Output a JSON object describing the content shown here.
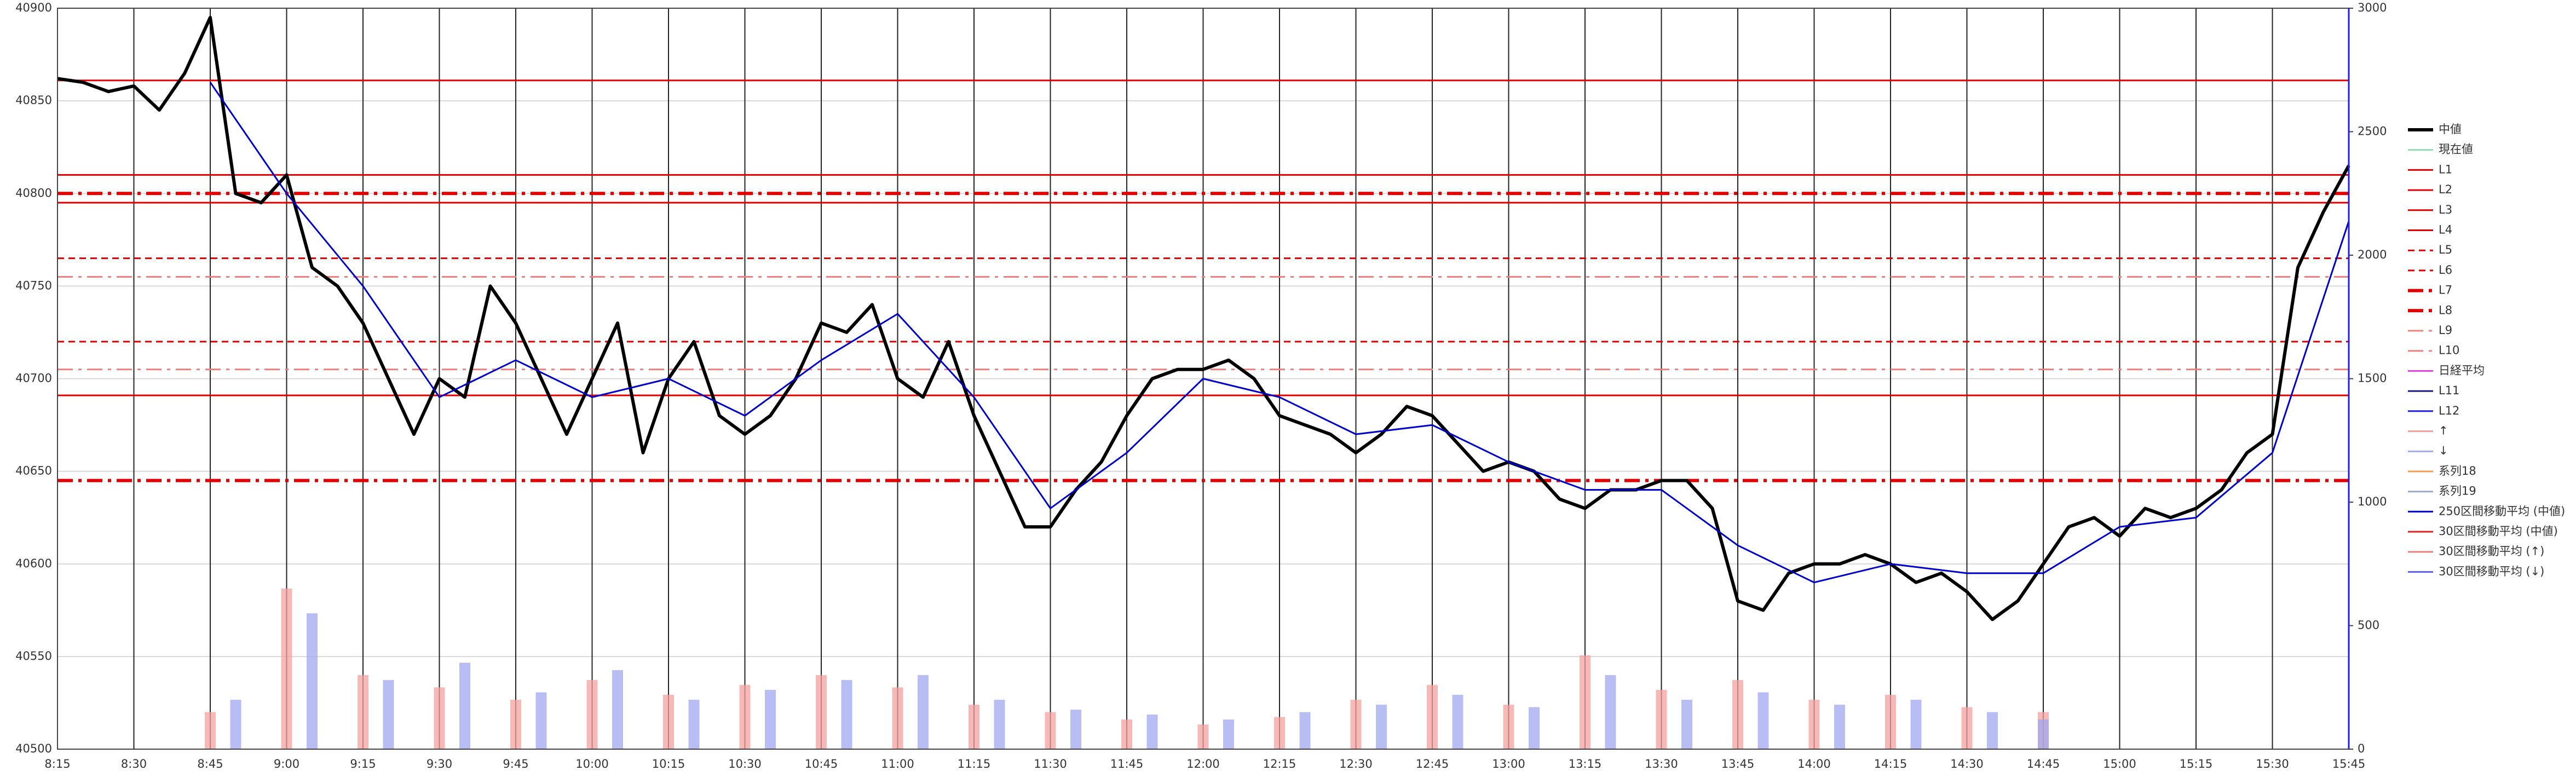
{
  "chart_data": {
    "type": "line",
    "xlim": [
      "8:15",
      "15:45"
    ],
    "xticks": [
      "8:15",
      "8:30",
      "8:45",
      "9:00",
      "9:15",
      "9:30",
      "9:45",
      "10:00",
      "10:15",
      "10:30",
      "10:45",
      "11:00",
      "11:15",
      "11:30",
      "11:45",
      "12:00",
      "12:15",
      "12:30",
      "12:45",
      "13:00",
      "13:15",
      "13:30",
      "13:45",
      "14:00",
      "14:15",
      "14:30",
      "14:45",
      "15:00",
      "15:15",
      "15:30",
      "15:45"
    ],
    "ylim": [
      40500,
      40900
    ],
    "yticks": [
      40500,
      40550,
      40600,
      40650,
      40700,
      40750,
      40800,
      40850,
      40900
    ],
    "y2lim": [
      0,
      3000
    ],
    "y2ticks": [
      0,
      500,
      1000,
      1500,
      2000,
      2500,
      3000
    ],
    "grid": true,
    "legend": "right",
    "series": [
      {
        "name": "中値",
        "color": "#000000",
        "line": "solid-bold",
        "x": [
          "8:15",
          "8:20",
          "8:25",
          "8:30",
          "8:35",
          "8:40",
          "8:45",
          "8:50",
          "8:55",
          "9:00",
          "9:05",
          "9:10",
          "9:15",
          "9:20",
          "9:25",
          "9:30",
          "9:35",
          "9:40",
          "9:45",
          "9:50",
          "9:55",
          "10:00",
          "10:05",
          "10:10",
          "10:15",
          "10:20",
          "10:25",
          "10:30",
          "10:35",
          "10:40",
          "10:45",
          "10:50",
          "10:55",
          "11:00",
          "11:05",
          "11:10",
          "11:15",
          "11:20",
          "11:25",
          "11:30",
          "11:35",
          "11:40",
          "11:45",
          "11:50",
          "11:55",
          "12:00",
          "12:05",
          "12:10",
          "12:15",
          "12:20",
          "12:25",
          "12:30",
          "12:35",
          "12:40",
          "12:45",
          "12:50",
          "12:55",
          "13:00",
          "13:05",
          "13:10",
          "13:15",
          "13:20",
          "13:25",
          "13:30",
          "13:35",
          "13:40",
          "13:45",
          "13:50",
          "13:55",
          "14:00",
          "14:05",
          "14:10",
          "14:15",
          "14:20",
          "14:25",
          "14:30",
          "14:35",
          "14:40",
          "14:45",
          "14:50",
          "14:55",
          "15:00",
          "15:05",
          "15:10",
          "15:15",
          "15:20",
          "15:25",
          "15:30",
          "15:35",
          "15:40",
          "15:45"
        ],
        "values": [
          40862,
          40860,
          40855,
          40858,
          40845,
          40865,
          40895,
          40800,
          40795,
          40810,
          40760,
          40750,
          40730,
          40700,
          40670,
          40700,
          40690,
          40750,
          40730,
          40700,
          40670,
          40700,
          40730,
          40660,
          40700,
          40720,
          40680,
          40670,
          40680,
          40700,
          40730,
          40725,
          40740,
          40700,
          40690,
          40720,
          40680,
          40650,
          40620,
          40620,
          40640,
          40655,
          40680,
          40700,
          40705,
          40705,
          40710,
          40700,
          40680,
          40675,
          40670,
          40660,
          40670,
          40685,
          40680,
          40665,
          40650,
          40655,
          40650,
          40635,
          40630,
          40640,
          40640,
          40645,
          40645,
          40630,
          40580,
          40575,
          40595,
          40600,
          40600,
          40605,
          40600,
          40590,
          40595,
          40585,
          40570,
          40580,
          40600,
          40620,
          40625,
          40615,
          40630,
          40625,
          40630,
          40640,
          40660,
          40670,
          40760,
          40790,
          40815
        ]
      },
      {
        "name": "現在値",
        "color": "#8fd9b6",
        "line": "solid"
      },
      {
        "name": "L1",
        "color": "#e00000",
        "line": "solid",
        "level": 40861
      },
      {
        "name": "L2",
        "color": "#e00000",
        "line": "solid",
        "level": 40810
      },
      {
        "name": "L3",
        "color": "#e00000",
        "line": "solid",
        "level": 40795
      },
      {
        "name": "L4",
        "color": "#e00000",
        "line": "solid",
        "level": 40691
      },
      {
        "name": "L5",
        "color": "#e00000",
        "line": "dashed",
        "level": 40765
      },
      {
        "name": "L6",
        "color": "#e00000",
        "line": "dashed",
        "level": 40720
      },
      {
        "name": "L7",
        "color": "#e00000",
        "line": "dashdot-bold",
        "level": 40800
      },
      {
        "name": "L8",
        "color": "#e00000",
        "line": "dashdot-bold",
        "level": 40645
      },
      {
        "name": "L9",
        "color": "#f08080",
        "line": "dashdot",
        "level": 40755
      },
      {
        "name": "L10",
        "color": "#f08080",
        "line": "dashdot",
        "level": 40705
      },
      {
        "name": "日経平均",
        "color": "#e040e0",
        "line": "solid"
      },
      {
        "name": "L11",
        "color": "#1a1a80",
        "line": "solid"
      },
      {
        "name": "L12",
        "color": "#2020e0",
        "line": "solid"
      },
      {
        "name": "↑",
        "color": "#f4a0a0",
        "line": "solid",
        "axis": "y2",
        "x": [
          "8:45",
          "9:00",
          "9:15",
          "9:30",
          "9:45",
          "10:00",
          "10:15",
          "10:30",
          "10:45",
          "11:00",
          "11:15",
          "11:30",
          "11:45",
          "12:00",
          "12:15",
          "12:30",
          "12:45",
          "13:00",
          "13:15",
          "13:30",
          "13:45",
          "14:00",
          "14:15",
          "14:30",
          "14:45"
        ],
        "values": [
          150,
          650,
          300,
          250,
          200,
          280,
          220,
          260,
          300,
          250,
          180,
          150,
          120,
          100,
          130,
          200,
          260,
          180,
          380,
          240,
          280,
          200,
          220,
          170,
          150
        ]
      },
      {
        "name": "↓",
        "color": "#a0a8f0",
        "line": "solid",
        "axis": "y2",
        "x": [
          "8:50",
          "9:05",
          "9:20",
          "9:35",
          "9:50",
          "10:05",
          "10:20",
          "10:35",
          "10:50",
          "11:05",
          "11:20",
          "11:35",
          "11:50",
          "12:05",
          "12:20",
          "12:35",
          "12:50",
          "13:05",
          "13:20",
          "13:35",
          "13:50",
          "14:05",
          "14:20",
          "14:35",
          "14:45"
        ],
        "values": [
          200,
          550,
          280,
          350,
          230,
          320,
          200,
          240,
          280,
          300,
          200,
          160,
          140,
          120,
          150,
          180,
          220,
          170,
          300,
          200,
          230,
          180,
          200,
          150,
          120
        ]
      },
      {
        "name": "系列18",
        "color": "#f0a050",
        "line": "solid"
      },
      {
        "name": "系列19",
        "color": "#a0a8c8",
        "line": "solid"
      },
      {
        "name": "250区間移動平均 (中値)",
        "color": "#0000cc",
        "line": "solid",
        "x": [
          "8:45",
          "9:00",
          "9:15",
          "9:30",
          "9:45",
          "10:00",
          "10:15",
          "10:30",
          "10:45",
          "11:00",
          "11:15",
          "11:30",
          "11:45",
          "12:00",
          "12:15",
          "12:30",
          "12:45",
          "13:00",
          "13:15",
          "13:30",
          "13:45",
          "14:00",
          "14:15",
          "14:30",
          "14:45",
          "15:00",
          "15:15",
          "15:30",
          "15:45"
        ],
        "values": [
          40860,
          40800,
          40750,
          40690,
          40710,
          40690,
          40700,
          40680,
          40710,
          40735,
          40690,
          40630,
          40660,
          40700,
          40690,
          40670,
          40675,
          40655,
          40640,
          40640,
          40610,
          40590,
          40600,
          40595,
          40595,
          40620,
          40625,
          40660,
          40785
        ]
      },
      {
        "name": "30区間移動平均 (中値)",
        "color": "#e02020",
        "line": "solid"
      },
      {
        "name": "30区間移動平均 (↑)",
        "color": "#f08080",
        "line": "solid"
      },
      {
        "name": "30区間移動平均 (↓)",
        "color": "#6060f0",
        "line": "solid"
      }
    ]
  }
}
